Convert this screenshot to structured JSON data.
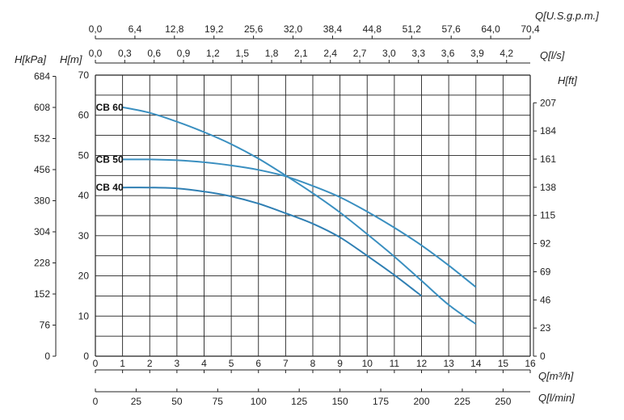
{
  "chart_data": {
    "type": "line",
    "title": "",
    "x": {
      "label": "Q[m³/h]",
      "min": 0,
      "max": 16,
      "ticks": [
        0,
        1,
        2,
        3,
        4,
        5,
        6,
        7,
        8,
        9,
        10,
        11,
        12,
        13,
        14,
        15,
        16
      ]
    },
    "y": {
      "label": "H[m]",
      "min": 0,
      "max": 70,
      "ticks": [
        0,
        10,
        20,
        30,
        40,
        50,
        60,
        70
      ]
    },
    "secondary_axes": {
      "top_usgpm": {
        "label": "Q[U.S.g.p.m.]",
        "ticks": [
          "0,0",
          "6,4",
          "12,8",
          "19,2",
          "25,6",
          "32,0",
          "38,4",
          "44,8",
          "51,2",
          "57,6",
          "64,0",
          "70,4"
        ]
      },
      "top_ls": {
        "label": "Q[l/s]",
        "ticks": [
          "0,0",
          "0,3",
          "0,6",
          "0,9",
          "1,2",
          "1,5",
          "1,8",
          "2,1",
          "2,4",
          "2,7",
          "3,0",
          "3,3",
          "3,6",
          "3,9",
          "4,2"
        ]
      },
      "bottom_lmin": {
        "label": "Q[l/min]",
        "ticks": [
          "0",
          "25",
          "50",
          "75",
          "100",
          "125",
          "150",
          "175",
          "200",
          "225",
          "250"
        ]
      },
      "left_kpa": {
        "label": "H[kPa]",
        "ticks": [
          "0",
          "76",
          "152",
          "228",
          "304",
          "380",
          "456",
          "532",
          "608",
          "684"
        ]
      },
      "right_ft": {
        "label": "H[ft]",
        "ticks": [
          "0",
          "23",
          "46",
          "69",
          "92",
          "115",
          "138",
          "161",
          "184",
          "207"
        ]
      }
    },
    "grid": true,
    "series": [
      {
        "name": "CB 60",
        "color": "#3a8fc0",
        "points": [
          [
            1,
            62
          ],
          [
            2,
            60.6
          ],
          [
            3,
            58.4
          ],
          [
            4,
            55.8
          ],
          [
            5,
            52.8
          ],
          [
            6,
            49.2
          ],
          [
            7,
            45
          ],
          [
            8,
            40.6
          ],
          [
            9,
            35.8
          ],
          [
            10,
            30.4
          ],
          [
            11,
            24.8
          ],
          [
            12,
            18.8
          ],
          [
            13,
            12.8
          ],
          [
            14,
            8
          ]
        ]
      },
      {
        "name": "CB 50",
        "color": "#3a8fc0",
        "points": [
          [
            1,
            49
          ],
          [
            2,
            49
          ],
          [
            3,
            48.8
          ],
          [
            4,
            48.3
          ],
          [
            5,
            47.5
          ],
          [
            6,
            46.4
          ],
          [
            7,
            44.8
          ],
          [
            8,
            42.4
          ],
          [
            9,
            39.6
          ],
          [
            10,
            36
          ],
          [
            11,
            32
          ],
          [
            12,
            27.6
          ],
          [
            13,
            22.6
          ],
          [
            14,
            17.2
          ]
        ]
      },
      {
        "name": "CB 40",
        "color": "#2f7fb3",
        "points": [
          [
            1,
            42
          ],
          [
            2,
            42
          ],
          [
            3,
            41.8
          ],
          [
            4,
            41
          ],
          [
            5,
            39.8
          ],
          [
            6,
            38
          ],
          [
            7,
            35.6
          ],
          [
            8,
            33
          ],
          [
            9,
            29.6
          ],
          [
            10,
            25
          ],
          [
            11,
            20.2
          ],
          [
            12,
            15
          ]
        ]
      }
    ]
  }
}
